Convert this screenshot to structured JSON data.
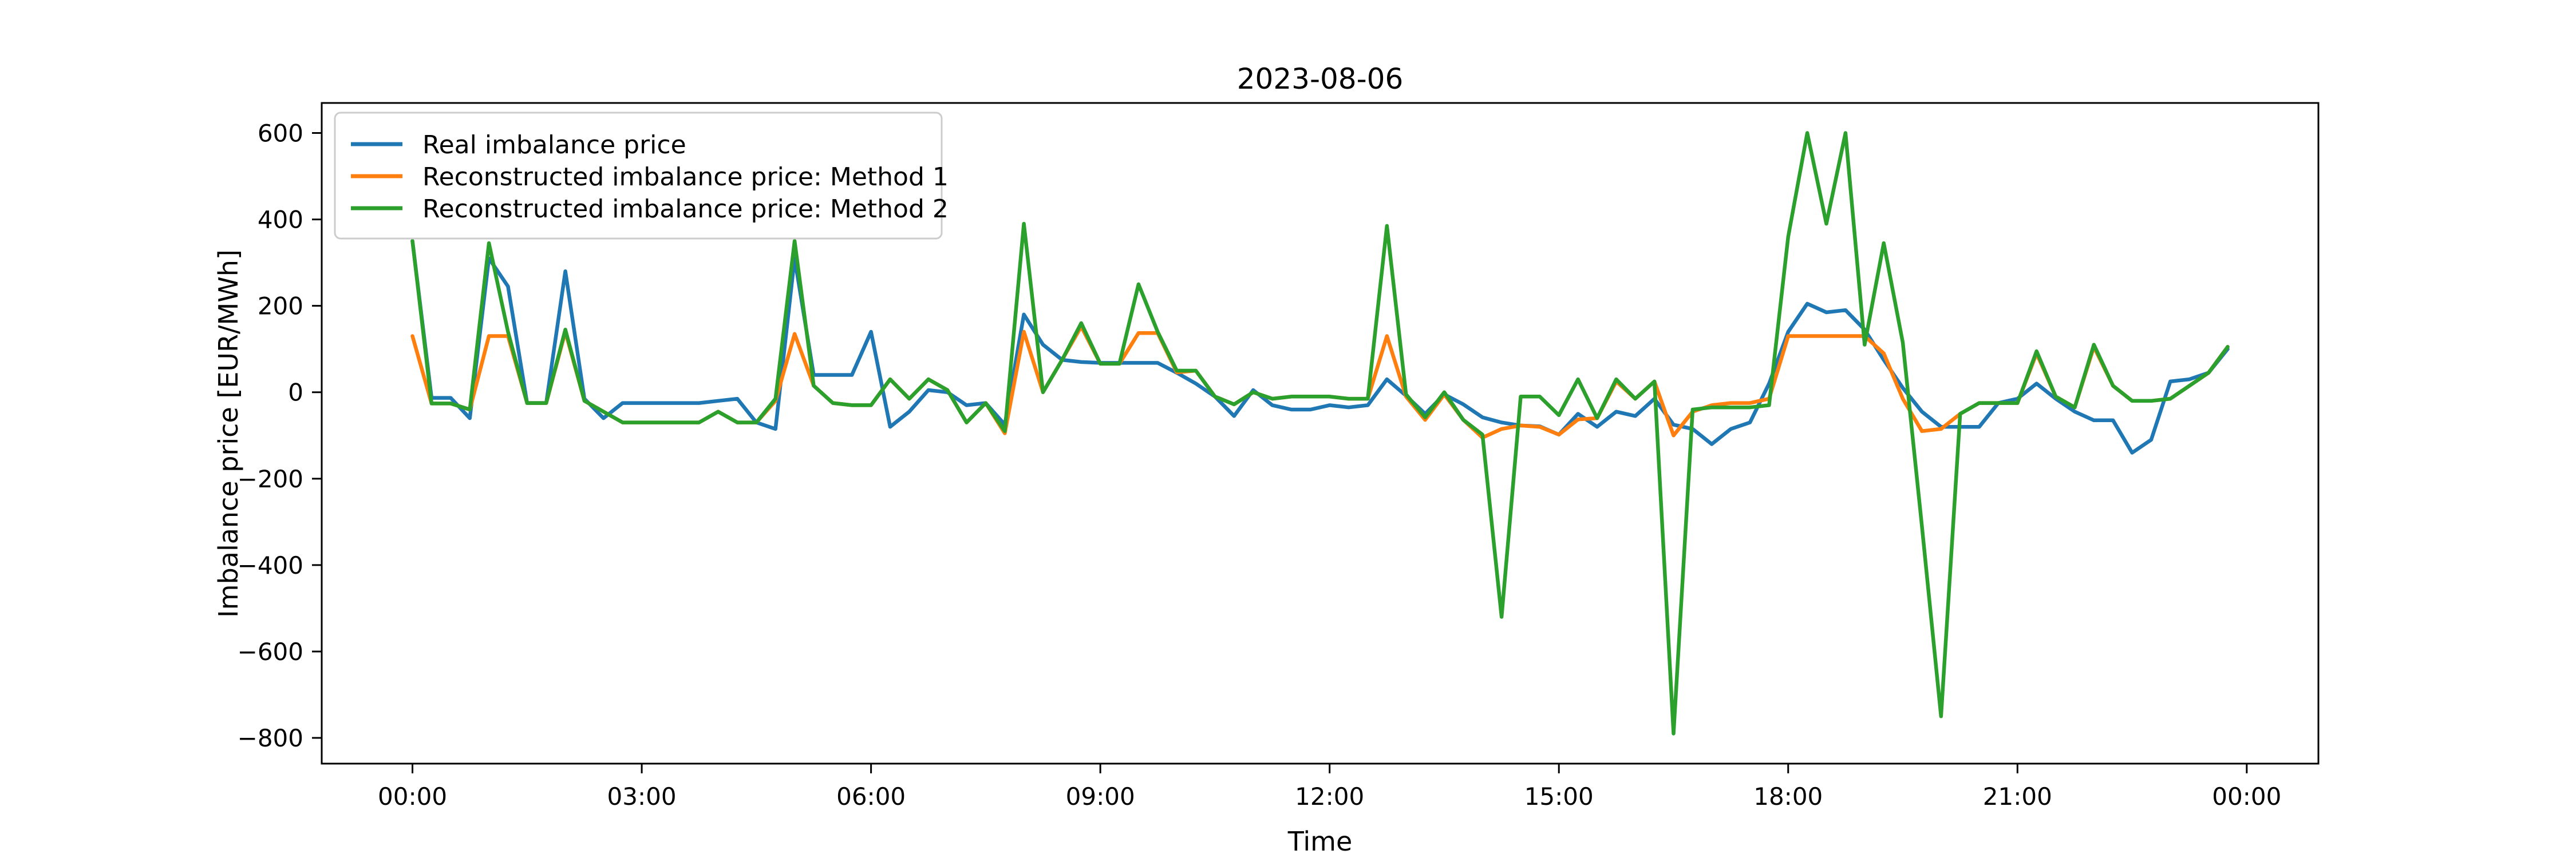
{
  "figure": {
    "title": "2023-08-06",
    "xlabel": "Time",
    "ylabel": "Imbalance price [EUR/MWh]"
  },
  "legend": {
    "position": "upper left",
    "items": [
      {
        "label": "Real imbalance price",
        "color": "#1f77b4"
      },
      {
        "label": "Reconstructed imbalance price: Method 1",
        "color": "#ff7f0e"
      },
      {
        "label": "Reconstructed imbalance price: Method 2",
        "color": "#2ca02c"
      }
    ]
  },
  "chart_data": {
    "type": "line",
    "title": "2023-08-06",
    "xlabel": "Time",
    "ylabel": "Imbalance price [EUR/MWh]",
    "x_start_hour": 0,
    "x_step_hours": 0.25,
    "n_points": 96,
    "xlim_hours": [
      -1.1875,
      24.9375
    ],
    "ylim": [
      -859.5,
      669.5
    ],
    "grid": false,
    "xticks": {
      "hours": [
        0,
        3,
        6,
        9,
        12,
        15,
        18,
        21,
        24
      ],
      "labels": [
        "00:00",
        "03:00",
        "06:00",
        "09:00",
        "12:00",
        "15:00",
        "18:00",
        "21:00",
        "00:00"
      ]
    },
    "yticks": {
      "values": [
        600,
        400,
        200,
        0,
        -200,
        -400,
        -600,
        -800
      ],
      "labels": [
        "600",
        "400",
        "200",
        "0",
        "−200",
        "−400",
        "−600",
        "−800"
      ]
    },
    "series": [
      {
        "name": "Real imbalance price",
        "color": "#1f77b4",
        "values": [
          350,
          -13,
          -13,
          -60,
          310,
          245,
          -25,
          -25,
          280,
          -15,
          -60,
          -25,
          -25,
          -25,
          -25,
          -25,
          -20,
          -15,
          -70,
          -85,
          310,
          40,
          40,
          40,
          140,
          -80,
          -45,
          5,
          0,
          -30,
          -25,
          -75,
          180,
          110,
          75,
          70,
          68,
          68,
          68,
          68,
          45,
          20,
          -10,
          -55,
          5,
          -30,
          -40,
          -40,
          -30,
          -35,
          -30,
          30,
          -8,
          -50,
          -5,
          -28,
          -58,
          -70,
          -77,
          -79,
          -98,
          -50,
          -80,
          -45,
          -55,
          -15,
          -75,
          -85,
          -120,
          -85,
          -70,
          20,
          140,
          205,
          185,
          190,
          145,
          75,
          10,
          -45,
          -80,
          -80,
          -80,
          -25,
          -15,
          20,
          -15,
          -45,
          -65,
          -65,
          -140,
          -110,
          25,
          30,
          45,
          100
        ]
      },
      {
        "name": "Reconstructed imbalance price: Method 1",
        "color": "#ff7f0e",
        "values": [
          130,
          -26,
          -26,
          -40,
          130,
          130,
          -25,
          -25,
          140,
          -20,
          -45,
          -70,
          -70,
          -70,
          -70,
          -70,
          -45,
          -70,
          -70,
          -20,
          135,
          15,
          -25,
          -30,
          -30,
          30,
          -15,
          30,
          5,
          -70,
          -25,
          -95,
          140,
          0,
          75,
          152,
          66,
          66,
          137,
          137,
          46,
          50,
          -10,
          -28,
          0,
          -15,
          -10,
          -10,
          -10,
          -15,
          -15,
          130,
          -10,
          -64,
          -5,
          -64,
          -105,
          -85,
          -77,
          -80,
          -98,
          -63,
          -60,
          25,
          -15,
          25,
          -100,
          -45,
          -30,
          -25,
          -25,
          -15,
          130,
          130,
          130,
          130,
          130,
          90,
          -15,
          -90,
          -85,
          -50,
          -25,
          -25,
          -25,
          90,
          -10,
          -35,
          105,
          15,
          -20,
          -20,
          -15,
          15,
          45,
          105
        ]
      },
      {
        "name": "Reconstructed imbalance price: Method 2",
        "color": "#2ca02c",
        "values": [
          350,
          -26,
          -26,
          -40,
          345,
          140,
          -25,
          -25,
          145,
          -20,
          -45,
          -70,
          -70,
          -70,
          -70,
          -70,
          -45,
          -70,
          -70,
          -15,
          350,
          15,
          -25,
          -30,
          -30,
          30,
          -15,
          30,
          5,
          -70,
          -25,
          -90,
          390,
          0,
          75,
          160,
          66,
          66,
          250,
          140,
          50,
          50,
          -10,
          -28,
          0,
          -15,
          -10,
          -10,
          -10,
          -15,
          -15,
          385,
          -5,
          -58,
          0,
          -64,
          -98,
          -520,
          -10,
          -10,
          -53,
          30,
          -60,
          30,
          -15,
          25,
          -790,
          -40,
          -35,
          -35,
          -35,
          -30,
          360,
          600,
          390,
          600,
          110,
          345,
          115,
          -310,
          -750,
          -50,
          -25,
          -25,
          -25,
          95,
          -10,
          -35,
          110,
          15,
          -20,
          -20,
          -15,
          15,
          45,
          105
        ]
      }
    ]
  }
}
